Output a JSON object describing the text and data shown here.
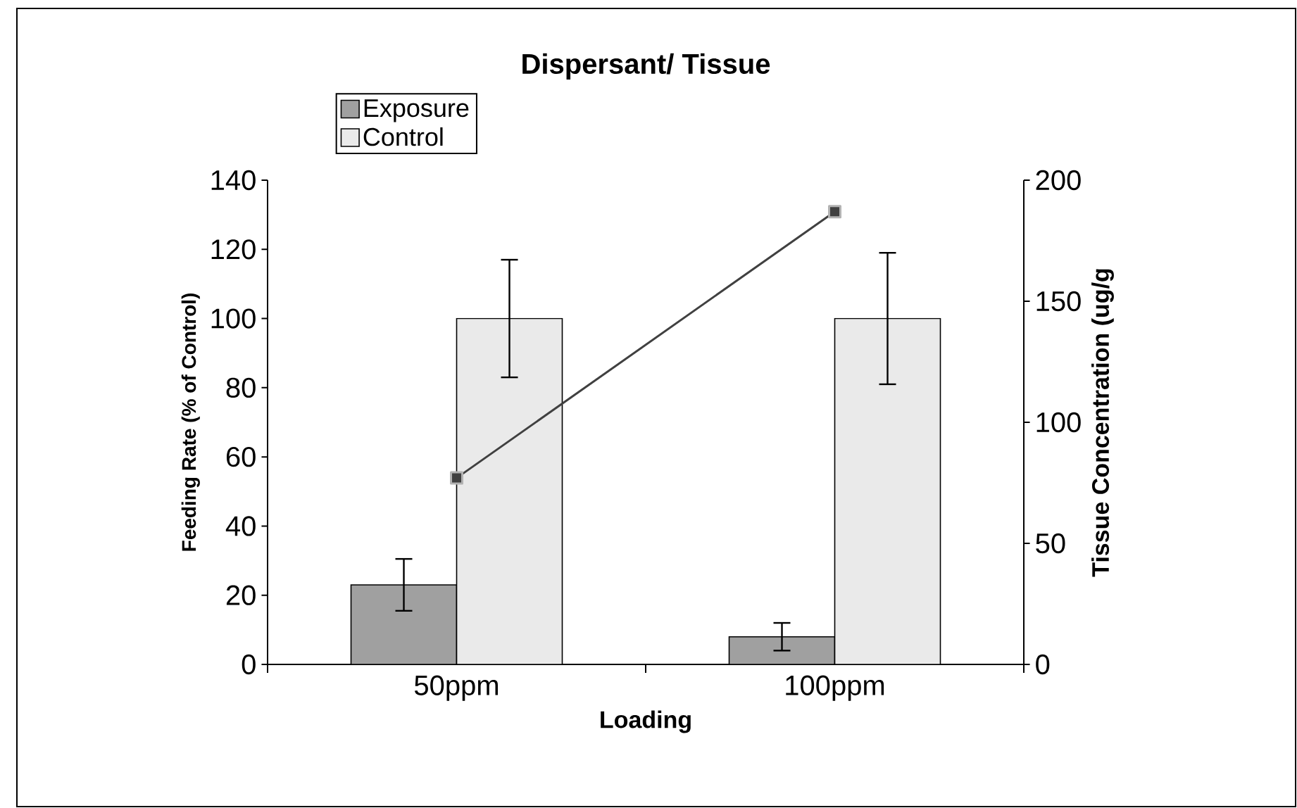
{
  "chart_data": {
    "type": "bar",
    "title": "Dispersant/ Tissue",
    "xlabel": "Loading",
    "ylabel": "Feeding Rate (% of Control)",
    "y2label": "Tissue Concentration (ug/g",
    "categories": [
      "50ppm",
      "100ppm"
    ],
    "series": [
      {
        "name": "Exposure",
        "color": "#a0a0a0",
        "values": [
          23,
          8
        ],
        "errors": [
          7.5,
          4
        ]
      },
      {
        "name": "Control",
        "color": "#eaeaea",
        "values": [
          100,
          100
        ],
        "errors": [
          17,
          19
        ]
      },
      {
        "type": "line",
        "axis": "y2",
        "color": "#404040",
        "marker": "square",
        "values": [
          77,
          187
        ]
      }
    ],
    "ylim": [
      0,
      140
    ],
    "yticks": [
      0,
      20,
      40,
      60,
      80,
      100,
      120,
      140
    ],
    "y2lim": [
      0,
      200
    ],
    "y2ticks": [
      0,
      50,
      100,
      150,
      200
    ],
    "legend": "top left",
    "grid": false
  }
}
